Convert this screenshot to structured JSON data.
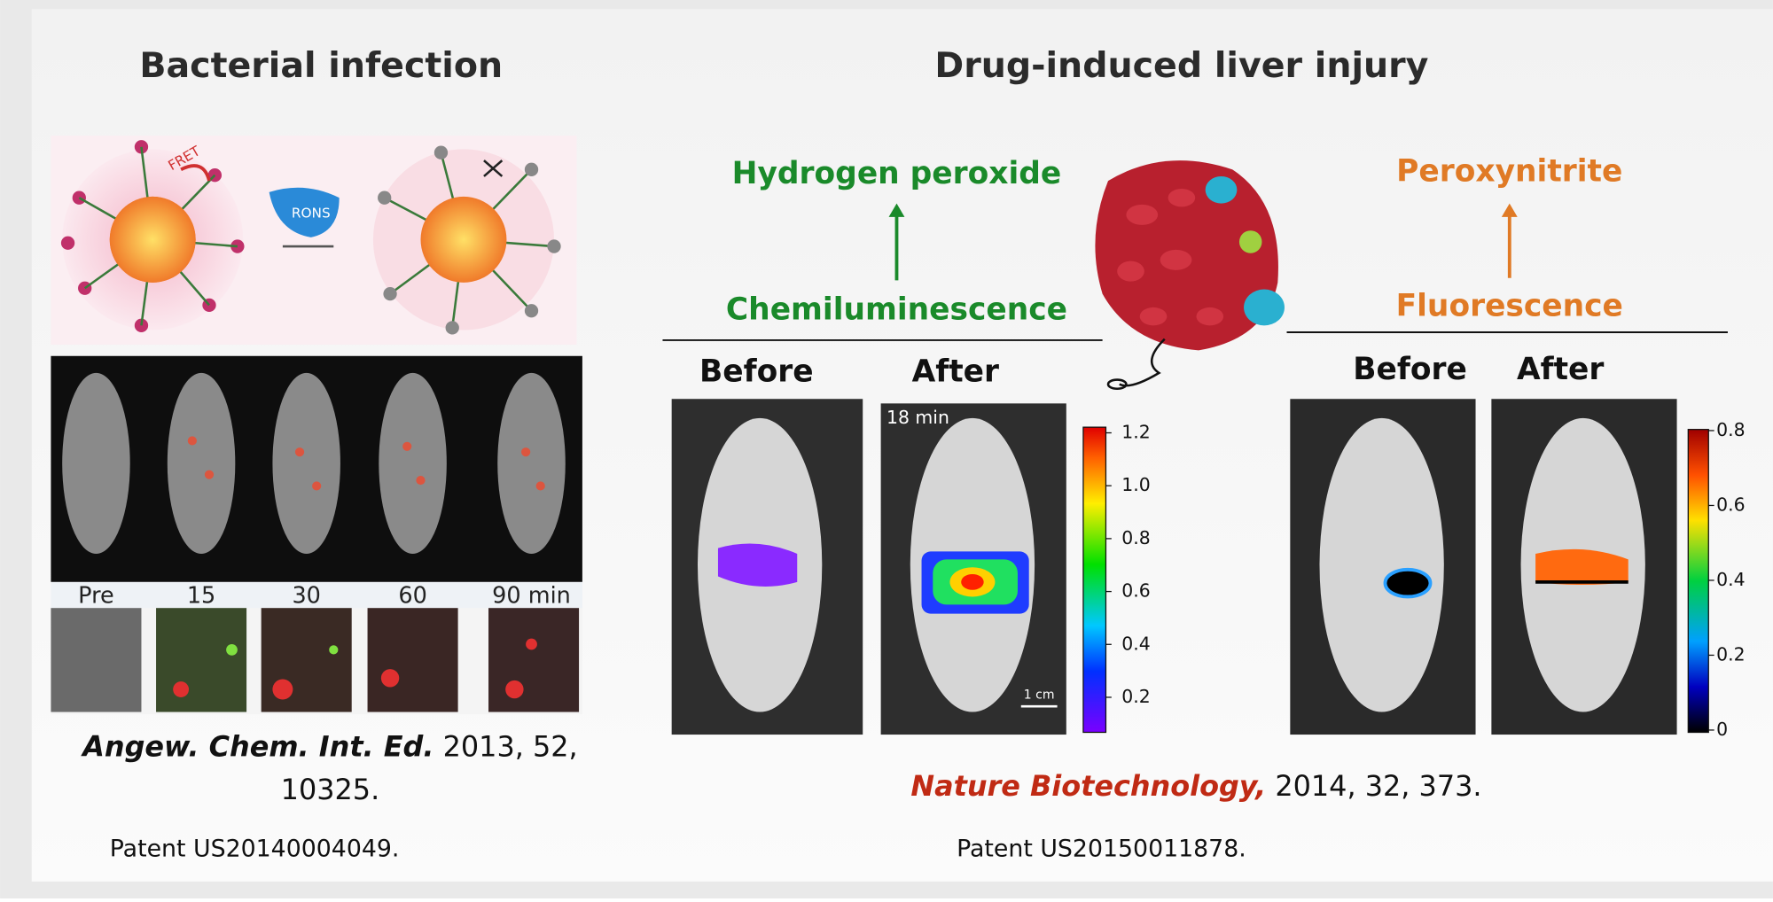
{
  "left": {
    "title": "Bacterial infection",
    "diagram": {
      "fret": "FRET",
      "rons": "RONS"
    },
    "time_labels": [
      "Pre",
      "15",
      "30",
      "60",
      "90 min"
    ],
    "citation": {
      "journal": "Angew. Chem. Int. Ed.",
      "details": " 2013, 52,",
      "details2": "10325."
    },
    "patent": "Patent US20140004049."
  },
  "right": {
    "title": "Drug-induced liver injury",
    "chemi": {
      "product": "Hydrogen peroxide",
      "method": "Chemiluminescence",
      "before": "Before",
      "after": "After",
      "time": "18 min",
      "scale": "1 cm",
      "colorbar": [
        "1.2",
        "1.0",
        "0.8",
        "0.6",
        "0.4",
        "0.2"
      ]
    },
    "fluor": {
      "product": "Peroxynitrite",
      "method": "Fluorescence",
      "before": "Before",
      "after": "After",
      "colorbar": [
        "0.8",
        "0.6",
        "0.4",
        "0.2",
        "0"
      ]
    },
    "citation": {
      "journal": "Nature Biotechnology,",
      "details": " 2014, 32, 373."
    },
    "patent": "Patent US20150011878."
  }
}
